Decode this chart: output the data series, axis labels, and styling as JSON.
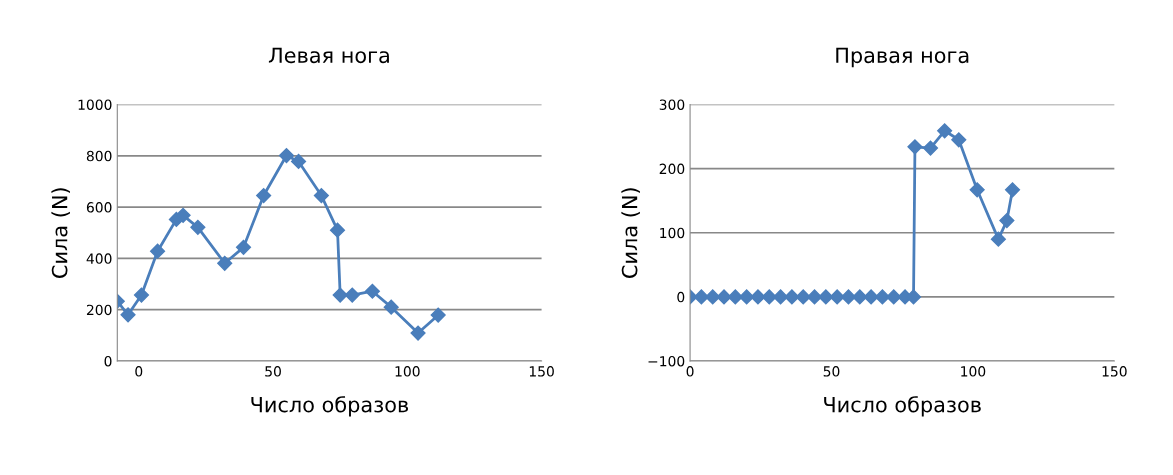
{
  "chart_data": [
    {
      "type": "line",
      "title": "Левая нога",
      "xlabel": "Число образов",
      "ylabel": "Сила (N)",
      "xlim": [
        -8,
        150
      ],
      "xticks": [
        0,
        50,
        100,
        150
      ],
      "ylim": [
        0,
        1000
      ],
      "yticks": [
        0,
        200,
        400,
        600,
        800,
        1000
      ],
      "grid": "y",
      "marker": "diamond",
      "line_style": "solid",
      "series": [
        {
          "color": "#4a7ebb",
          "x": [
            -8,
            -4,
            1,
            7,
            14,
            16.5,
            22,
            32,
            39,
            46.5,
            55,
            59.5,
            68,
            74,
            75,
            79.5,
            87,
            94,
            104,
            111.5
          ],
          "values": [
            233,
            180,
            257,
            428,
            552,
            568,
            521,
            381,
            443,
            645,
            801,
            778,
            645,
            510,
            257,
            257,
            272,
            210,
            109,
            179
          ]
        }
      ]
    },
    {
      "type": "line",
      "title": "Правая нога",
      "xlabel": "Число образов",
      "ylabel": "Сила (N)",
      "xlim": [
        0,
        150
      ],
      "xticks": [
        0,
        50,
        100,
        150
      ],
      "ylim": [
        -100,
        300
      ],
      "yticks": [
        {
          "value": -100,
          "label": "−100"
        },
        0,
        100,
        200,
        300
      ],
      "grid": "y",
      "marker": "diamond",
      "line_style": "solid",
      "series": [
        {
          "color": "#4a7ebb",
          "x": [
            0,
            4,
            8,
            12,
            16,
            20,
            24,
            28,
            32,
            36,
            40,
            44,
            48,
            52,
            56,
            60,
            64,
            68,
            72,
            76,
            79,
            79.5,
            85,
            90,
            95,
            101.5,
            109,
            112,
            114
          ],
          "values": [
            0,
            0,
            0,
            0,
            0,
            0,
            0,
            0,
            0,
            0,
            0,
            0,
            0,
            0,
            0,
            0,
            0,
            0,
            0,
            0,
            0,
            234,
            232,
            259,
            245,
            167,
            90,
            119,
            167
          ]
        }
      ]
    }
  ]
}
